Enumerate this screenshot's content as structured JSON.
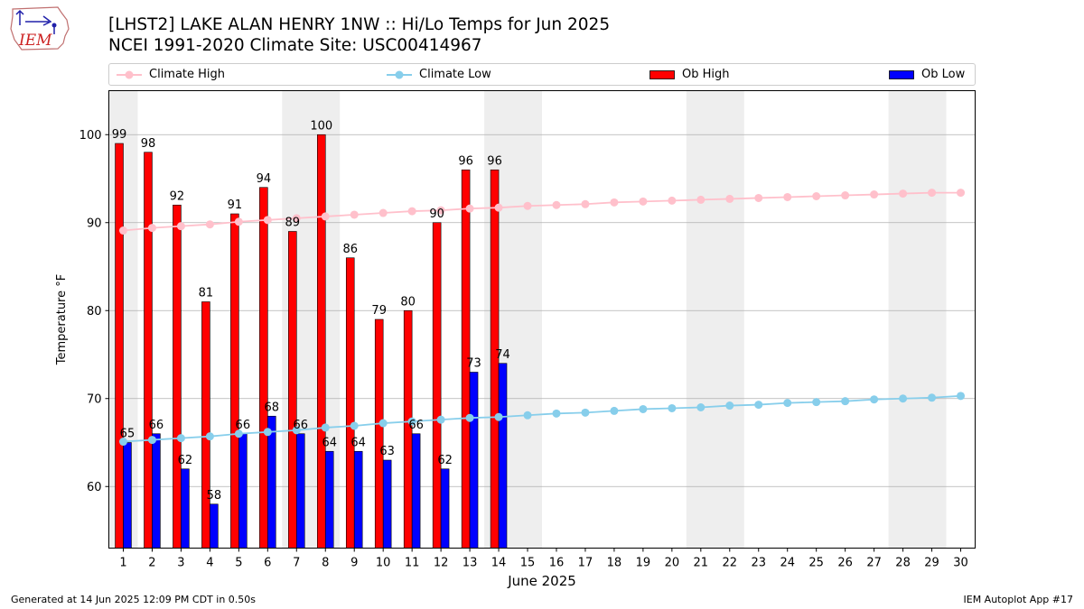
{
  "header": {
    "title": "[LHST2] LAKE ALAN HENRY 1NW :: Hi/Lo Temps for Jun 2025",
    "subtitle": "NCEI 1991-2020 Climate Site: USC00414967",
    "logo_text": "IEM"
  },
  "legend": {
    "climate_high": "Climate High",
    "climate_low": "Climate Low",
    "ob_high": "Ob High",
    "ob_low": "Ob Low"
  },
  "colors": {
    "climate_high": "#ffc0cb",
    "climate_low": "#87ceeb",
    "ob_high": "#ff0000",
    "ob_low": "#0000ff",
    "weekend_band": "#eeeeee",
    "grid": "#b0b0b0"
  },
  "footer": {
    "generated": "Generated at 14 Jun 2025 12:09 PM CDT in 0.50s",
    "app": "IEM Autoplot App #17"
  },
  "chart_data": {
    "type": "bar",
    "xlabel": "June 2025",
    "ylabel": "Temperature °F",
    "ylim": [
      53,
      105
    ],
    "yticks": [
      60,
      70,
      80,
      90,
      100
    ],
    "xlim": [
      0.5,
      30.5
    ],
    "grid": "y",
    "legend_position": "top",
    "days": [
      1,
      2,
      3,
      4,
      5,
      6,
      7,
      8,
      9,
      10,
      11,
      12,
      13,
      14,
      15,
      16,
      17,
      18,
      19,
      20,
      21,
      22,
      23,
      24,
      25,
      26,
      27,
      28,
      29,
      30
    ],
    "weekend_bands": [
      [
        1,
        1
      ],
      [
        7,
        8
      ],
      [
        14,
        15
      ],
      [
        21,
        22
      ],
      [
        28,
        29
      ]
    ],
    "series": [
      {
        "name": "Ob High",
        "kind": "bar",
        "values": [
          99,
          98,
          92,
          81,
          91,
          94,
          89,
          100,
          86,
          79,
          80,
          90,
          96,
          96
        ]
      },
      {
        "name": "Ob Low",
        "kind": "bar",
        "values": [
          65,
          66,
          62,
          58,
          66,
          68,
          66,
          64,
          64,
          63,
          66,
          62,
          73,
          74
        ]
      },
      {
        "name": "Climate High",
        "kind": "line",
        "values": [
          89.1,
          89.4,
          89.6,
          89.8,
          90.1,
          90.3,
          90.5,
          90.7,
          90.9,
          91.1,
          91.3,
          91.4,
          91.6,
          91.7,
          91.9,
          92.0,
          92.1,
          92.3,
          92.4,
          92.5,
          92.6,
          92.7,
          92.8,
          92.9,
          93.0,
          93.1,
          93.2,
          93.3,
          93.4,
          93.4
        ]
      },
      {
        "name": "Climate Low",
        "kind": "line",
        "values": [
          65.1,
          65.3,
          65.5,
          65.7,
          66.0,
          66.2,
          66.4,
          66.7,
          66.9,
          67.2,
          67.4,
          67.6,
          67.8,
          67.9,
          68.1,
          68.3,
          68.4,
          68.6,
          68.8,
          68.9,
          69.0,
          69.2,
          69.3,
          69.5,
          69.6,
          69.7,
          69.9,
          70.0,
          70.1,
          70.3
        ]
      }
    ]
  }
}
